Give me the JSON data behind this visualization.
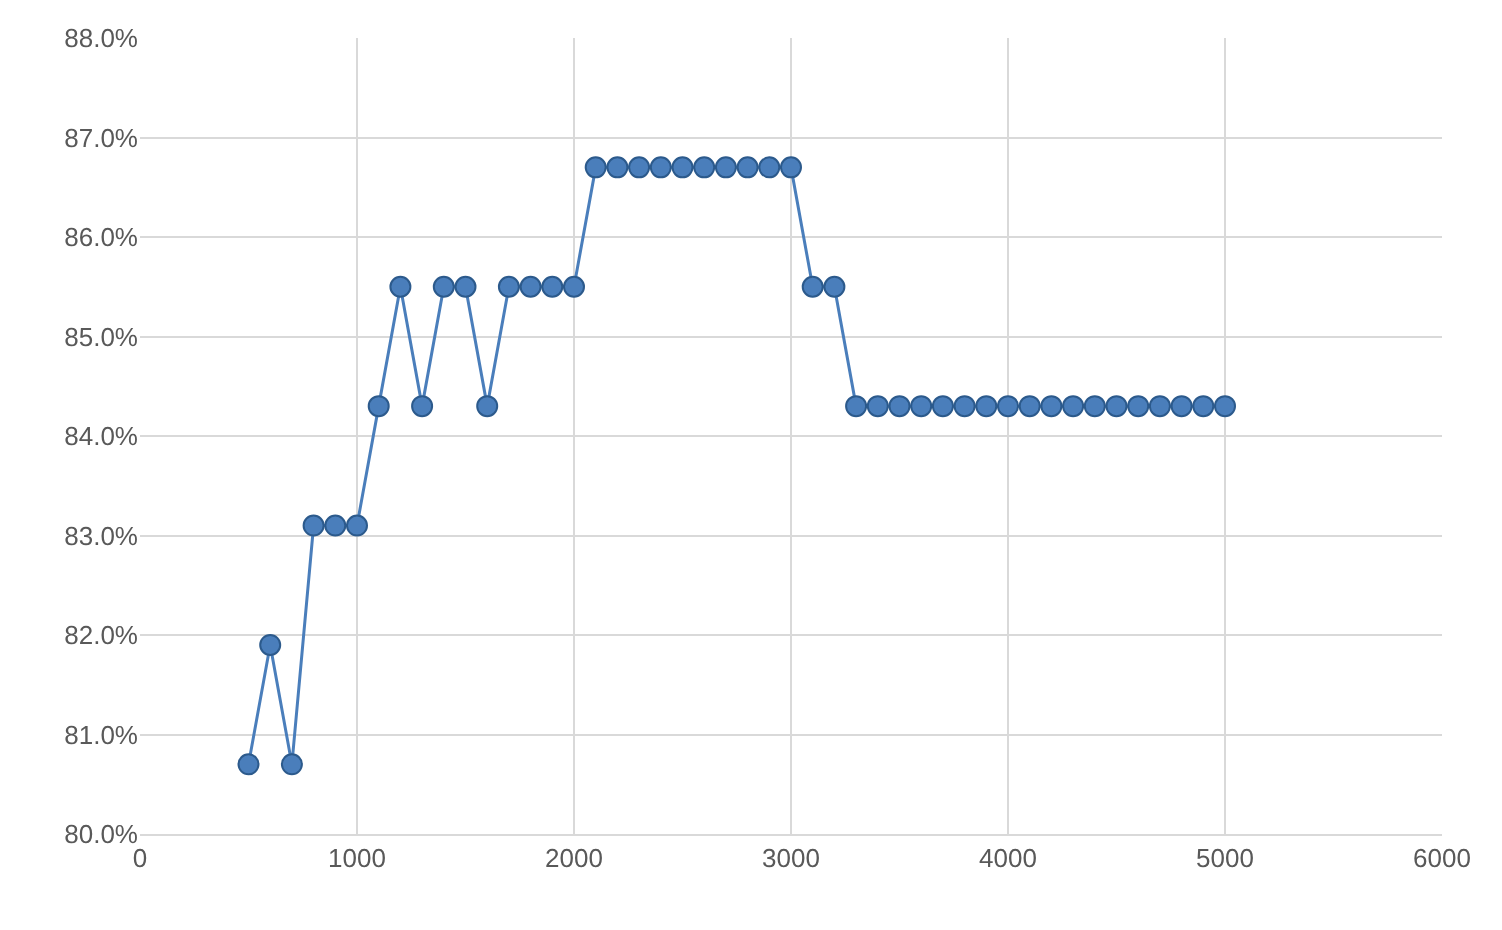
{
  "chart_data": {
    "type": "line",
    "x": [
      500,
      600,
      700,
      800,
      900,
      1000,
      1100,
      1200,
      1300,
      1400,
      1500,
      1600,
      1700,
      1800,
      1900,
      2000,
      2100,
      2200,
      2300,
      2400,
      2500,
      2600,
      2700,
      2800,
      2900,
      3000,
      3100,
      3200,
      3300,
      3400,
      3500,
      3600,
      3700,
      3800,
      3900,
      4000,
      4100,
      4200,
      4300,
      4400,
      4500,
      4600,
      4700,
      4800,
      4900,
      5000
    ],
    "series": [
      {
        "color": "#4a7ebb",
        "values": [
          80.7,
          81.9,
          80.7,
          83.1,
          83.1,
          83.1,
          84.3,
          85.5,
          84.3,
          85.5,
          85.5,
          84.3,
          85.5,
          85.5,
          85.5,
          85.5,
          86.7,
          86.7,
          86.7,
          86.7,
          86.7,
          86.7,
          86.7,
          86.7,
          86.7,
          86.7,
          85.5,
          85.5,
          84.3,
          84.3,
          84.3,
          84.3,
          84.3,
          84.3,
          84.3,
          84.3,
          84.3,
          84.3,
          84.3,
          84.3,
          84.3,
          84.3,
          84.3,
          84.3,
          84.3,
          84.3
        ]
      }
    ],
    "xlim": [
      0,
      6000
    ],
    "xticks": [
      0,
      1000,
      2000,
      3000,
      4000,
      5000,
      6000
    ],
    "ylim": [
      80,
      88
    ],
    "yticks": [
      {
        "value": 80,
        "label": "80.0%"
      },
      {
        "value": 81,
        "label": "81.0%"
      },
      {
        "value": 82,
        "label": "82.0%"
      },
      {
        "value": 83,
        "label": "83.0%"
      },
      {
        "value": 84,
        "label": "84.0%"
      },
      {
        "value": 85,
        "label": "85.0%"
      },
      {
        "value": 86,
        "label": "86.0%"
      },
      {
        "value": 87,
        "label": "87.0%"
      },
      {
        "value": 88,
        "label": "88.0%"
      }
    ],
    "grid": true,
    "marker": "circle",
    "line_style": "solid"
  }
}
